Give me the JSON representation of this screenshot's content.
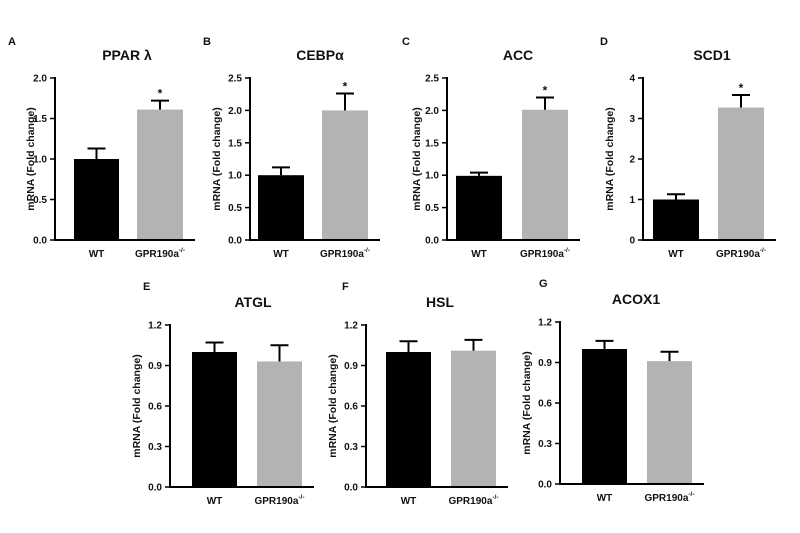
{
  "colors": {
    "wt": "#000000",
    "ko": "#b3b3b3",
    "axis": "#000000",
    "background": "#ffffff"
  },
  "chart_data": [
    {
      "type": "bar",
      "panel": "A",
      "title": "PPAR λ",
      "ylabel": "mRNA (Fold change)",
      "xlabel": "",
      "ylim": [
        0,
        2.0
      ],
      "yticks": [
        "0.0",
        "0.5",
        "1.0",
        "1.5",
        "2.0"
      ],
      "ytick_values": [
        0,
        0.5,
        1.0,
        1.5,
        2.0
      ],
      "categories": [
        {
          "text": "WT",
          "sup": ""
        },
        {
          "text": "GPR190a",
          "sup": "-/-"
        }
      ],
      "values": [
        1.0,
        1.61
      ],
      "errors": [
        0.13,
        0.11
      ],
      "significance": [
        "",
        "*"
      ]
    },
    {
      "type": "bar",
      "panel": "B",
      "title": "CEBPα",
      "ylabel": "mRNA (Fold change)",
      "xlabel": "",
      "ylim": [
        0,
        2.5
      ],
      "yticks": [
        "0.0",
        "0.5",
        "1.0",
        "1.5",
        "2.0",
        "2.5"
      ],
      "ytick_values": [
        0,
        0.5,
        1.0,
        1.5,
        2.0,
        2.5
      ],
      "categories": [
        {
          "text": "WT",
          "sup": ""
        },
        {
          "text": "GPR190a",
          "sup": "-/-"
        }
      ],
      "values": [
        1.0,
        2.0
      ],
      "errors": [
        0.12,
        0.26
      ],
      "significance": [
        "",
        "*"
      ]
    },
    {
      "type": "bar",
      "panel": "C",
      "title": "ACC",
      "ylabel": "mRNA (Fold change)",
      "xlabel": "",
      "ylim": [
        0,
        2.5
      ],
      "yticks": [
        "0.0",
        "0.5",
        "1.0",
        "1.5",
        "2.0",
        "2.5"
      ],
      "ytick_values": [
        0,
        0.5,
        1.0,
        1.5,
        2.0,
        2.5
      ],
      "categories": [
        {
          "text": "WT",
          "sup": ""
        },
        {
          "text": "GPR190a",
          "sup": "-/-"
        }
      ],
      "values": [
        0.99,
        2.01
      ],
      "errors": [
        0.05,
        0.19
      ],
      "significance": [
        "",
        "*"
      ]
    },
    {
      "type": "bar",
      "panel": "D",
      "title": "SCD1",
      "ylabel": "mRNA (Fold change)",
      "xlabel": "",
      "ylim": [
        0,
        4
      ],
      "yticks": [
        "0",
        "1",
        "2",
        "3",
        "4"
      ],
      "ytick_values": [
        0,
        1,
        2,
        3,
        4
      ],
      "categories": [
        {
          "text": "WT",
          "sup": ""
        },
        {
          "text": "GPR190a",
          "sup": "-/-"
        }
      ],
      "values": [
        1.0,
        3.27
      ],
      "errors": [
        0.13,
        0.31
      ],
      "significance": [
        "",
        "*"
      ]
    },
    {
      "type": "bar",
      "panel": "E",
      "title": "ATGL",
      "ylabel": "mRNA (Fold change)",
      "xlabel": "",
      "ylim": [
        0,
        1.2
      ],
      "yticks": [
        "0.0",
        "0.3",
        "0.6",
        "0.9",
        "1.2"
      ],
      "ytick_values": [
        0,
        0.3,
        0.6,
        0.9,
        1.2
      ],
      "categories": [
        {
          "text": "WT",
          "sup": ""
        },
        {
          "text": "GPR190a",
          "sup": "-/-"
        }
      ],
      "values": [
        1.0,
        0.93
      ],
      "errors": [
        0.07,
        0.12
      ],
      "significance": [
        "",
        ""
      ]
    },
    {
      "type": "bar",
      "panel": "F",
      "title": "HSL",
      "ylabel": "mRNA (Fold change)",
      "xlabel": "",
      "ylim": [
        0,
        1.2
      ],
      "yticks": [
        "0.0",
        "0.3",
        "0.6",
        "0.9",
        "1.2"
      ],
      "ytick_values": [
        0,
        0.3,
        0.6,
        0.9,
        1.2
      ],
      "categories": [
        {
          "text": "WT",
          "sup": ""
        },
        {
          "text": "GPR190a",
          "sup": "-/-"
        }
      ],
      "values": [
        1.0,
        1.01
      ],
      "errors": [
        0.08,
        0.08
      ],
      "significance": [
        "",
        ""
      ]
    },
    {
      "type": "bar",
      "panel": "G",
      "title": "ACOX1",
      "ylabel": "mRNA (Fold change)",
      "xlabel": "",
      "ylim": [
        0,
        1.2
      ],
      "yticks": [
        "0.0",
        "0.3",
        "0.6",
        "0.9",
        "1.2"
      ],
      "ytick_values": [
        0,
        0.3,
        0.6,
        0.9,
        1.2
      ],
      "categories": [
        {
          "text": "WT",
          "sup": ""
        },
        {
          "text": "GPR190a",
          "sup": "-/-"
        }
      ],
      "values": [
        1.0,
        0.91
      ],
      "errors": [
        0.06,
        0.07
      ],
      "significance": [
        "",
        ""
      ]
    }
  ]
}
